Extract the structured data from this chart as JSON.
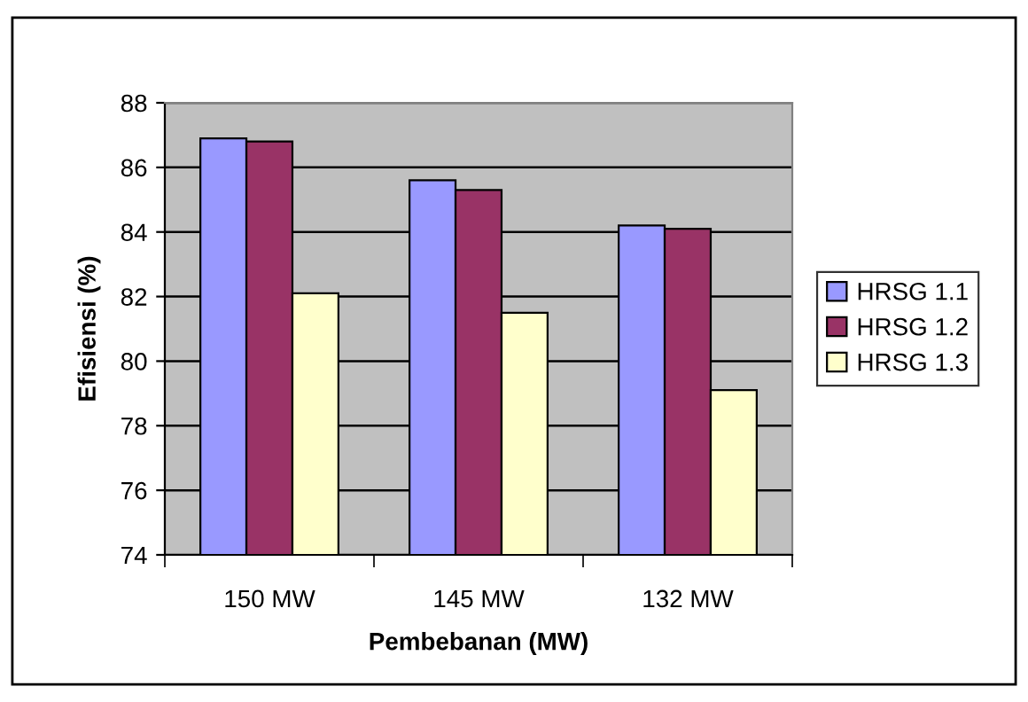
{
  "chart_data": {
    "type": "bar",
    "xlabel": "Pembebanan (MW)",
    "ylabel": "Efisiensi (%)",
    "categories": [
      "150 MW",
      "145 MW",
      "132 MW"
    ],
    "series": [
      {
        "name": "HRSG 1.1",
        "color": "#9999ff",
        "values": [
          86.9,
          85.6,
          84.2
        ]
      },
      {
        "name": "HRSG 1.2",
        "color": "#993366",
        "values": [
          86.8,
          85.3,
          84.1
        ]
      },
      {
        "name": "HRSG 1.3",
        "color": "#ffffcc",
        "values": [
          82.1,
          81.5,
          79.1
        ]
      }
    ],
    "ylim": [
      74,
      88
    ],
    "yticks": [
      74,
      76,
      78,
      80,
      82,
      84,
      86,
      88
    ],
    "grid": "y",
    "legend": "right"
  }
}
